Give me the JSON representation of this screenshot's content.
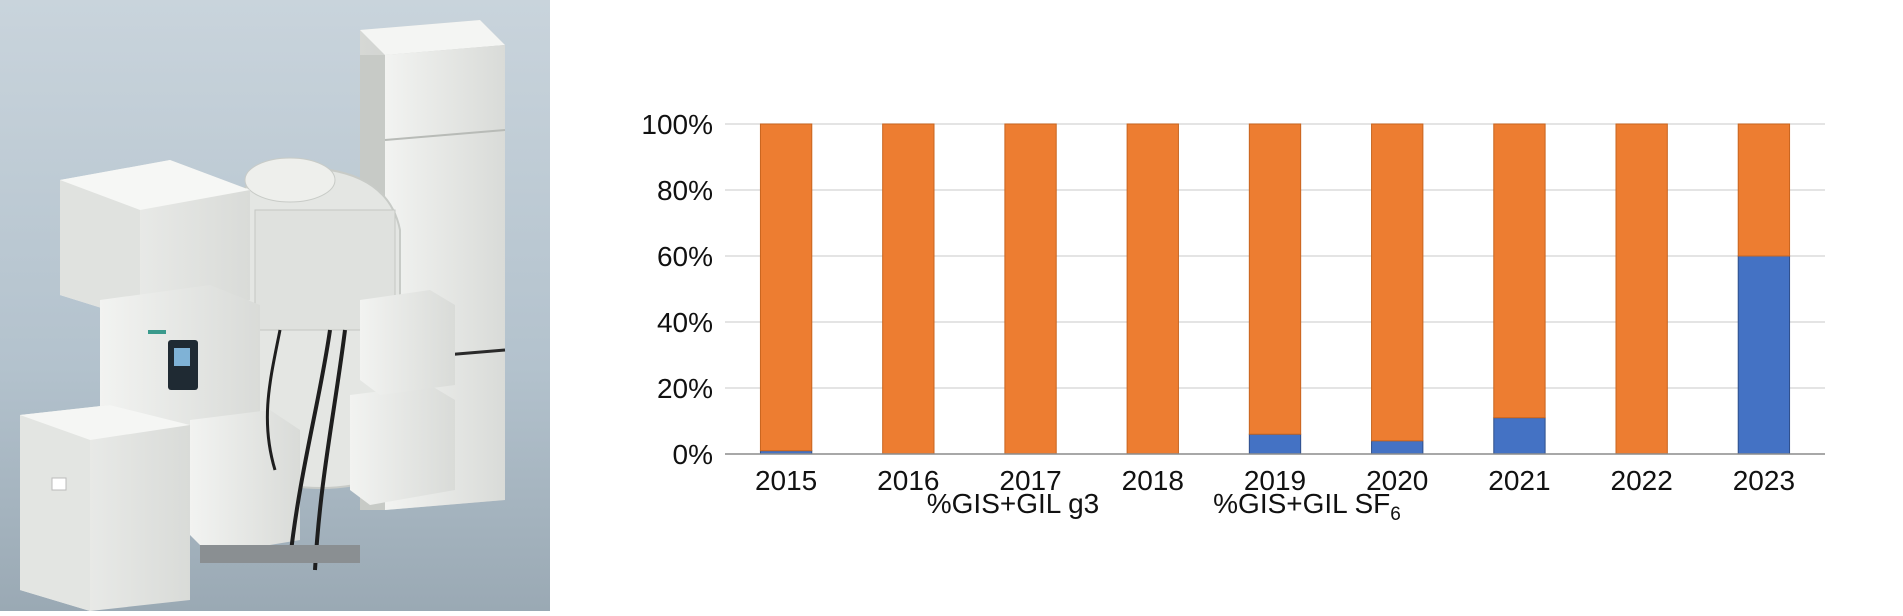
{
  "chart_data": {
    "type": "bar",
    "stacked": true,
    "percent": true,
    "categories": [
      "2015",
      "2016",
      "2017",
      "2018",
      "2019",
      "2020",
      "2021",
      "2022",
      "2023"
    ],
    "series": [
      {
        "name": "%GIS+GIL g3",
        "color": "#4472c4",
        "values": [
          1,
          0,
          0,
          0,
          6,
          4,
          11,
          0,
          60
        ]
      },
      {
        "name": "%GIS+GIL SF",
        "name_subscript": "6",
        "color": "#ed7d31",
        "values": [
          99,
          100,
          100,
          100,
          94,
          96,
          89,
          100,
          40
        ]
      }
    ],
    "ylim": [
      0,
      100
    ],
    "yticks": [
      "0%",
      "20%",
      "40%",
      "60%",
      "80%",
      "100%"
    ],
    "grid": true,
    "legend_position": "bottom"
  },
  "photo": {
    "subject": "gas-insulated-switchgear-unit",
    "background_color": "#aebfcc",
    "equipment_color": "#ecedea"
  }
}
